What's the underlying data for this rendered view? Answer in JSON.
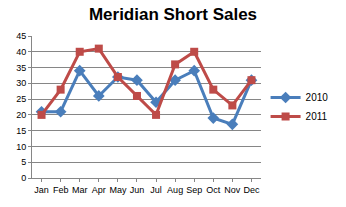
{
  "chart_data": {
    "type": "line",
    "title": "Meridian Short Sales",
    "categories": [
      "Jan",
      "Feb",
      "Mar",
      "Apr",
      "May",
      "Jun",
      "Jul",
      "Aug",
      "Sep",
      "Oct",
      "Nov",
      "Dec"
    ],
    "series": [
      {
        "name": "2010",
        "color": "#4a7ebb",
        "marker": "diamond",
        "line_style": "solid",
        "values": [
          21,
          21,
          34,
          26,
          32,
          31,
          24,
          31,
          34,
          19,
          17,
          31
        ]
      },
      {
        "name": "2011",
        "color": "#be4b48",
        "marker": "square",
        "line_style": "solid",
        "values": [
          20,
          28,
          40,
          41,
          32,
          26,
          20,
          36,
          40,
          28,
          23,
          31
        ]
      }
    ],
    "ylim": [
      0,
      45
    ],
    "yticks": [
      0,
      5,
      10,
      15,
      20,
      25,
      30,
      35,
      40,
      45
    ],
    "grid": true,
    "legend": "right"
  }
}
